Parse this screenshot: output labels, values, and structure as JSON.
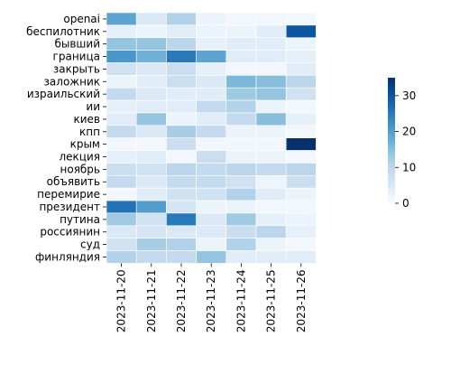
{
  "chart_data": {
    "type": "heatmap",
    "title": "",
    "xlabel": "",
    "ylabel": "",
    "x_categories": [
      "2023-11-20",
      "2023-11-21",
      "2023-11-22",
      "2023-11-23",
      "2023-11-24",
      "2023-11-25",
      "2023-11-26"
    ],
    "y_categories": [
      "openai",
      "беспилотник",
      "бывший",
      "граница",
      "закрыть",
      "заложник",
      "израильский",
      "ии",
      "киев",
      "кпп",
      "крым",
      "лекция",
      "ноябрь",
      "объявить",
      "перемирие",
      "президент",
      "путина",
      "россиянин",
      "суд",
      "финляндия"
    ],
    "values": [
      [
        19,
        5,
        11,
        2,
        1,
        1,
        1
      ],
      [
        3,
        2,
        4,
        2,
        2,
        4,
        30
      ],
      [
        14,
        14,
        10,
        3,
        4,
        4,
        2
      ],
      [
        21,
        17,
        25,
        19,
        4,
        4,
        3
      ],
      [
        7,
        5,
        8,
        3,
        1,
        1,
        4
      ],
      [
        2,
        4,
        8,
        5,
        16,
        15,
        10
      ],
      [
        9,
        5,
        4,
        4,
        13,
        14,
        7
      ],
      [
        3,
        4,
        4,
        9,
        11,
        2,
        1
      ],
      [
        4,
        14,
        2,
        4,
        9,
        15,
        3
      ],
      [
        9,
        5,
        12,
        9,
        2,
        2,
        1
      ],
      [
        1,
        1,
        8,
        1,
        1,
        1,
        35
      ],
      [
        3,
        4,
        1,
        8,
        2,
        2,
        1
      ],
      [
        8,
        7,
        10,
        9,
        10,
        9,
        10
      ],
      [
        9,
        5,
        9,
        9,
        7,
        2,
        8
      ],
      [
        1,
        4,
        7,
        7,
        11,
        4,
        2
      ],
      [
        26,
        20,
        6,
        2,
        2,
        1,
        1
      ],
      [
        13,
        7,
        25,
        5,
        13,
        3,
        2
      ],
      [
        5,
        6,
        5,
        5,
        8,
        10,
        3
      ],
      [
        7,
        12,
        11,
        2,
        11,
        2,
        1
      ],
      [
        11,
        9,
        9,
        14,
        4,
        4,
        4
      ]
    ],
    "colorbar": {
      "min": 0,
      "max": 35,
      "ticks": [
        0,
        10,
        20,
        30
      ],
      "colormap": "Blues",
      "position": "right"
    },
    "grid": false,
    "cell_edge_color": "#ffffff"
  }
}
